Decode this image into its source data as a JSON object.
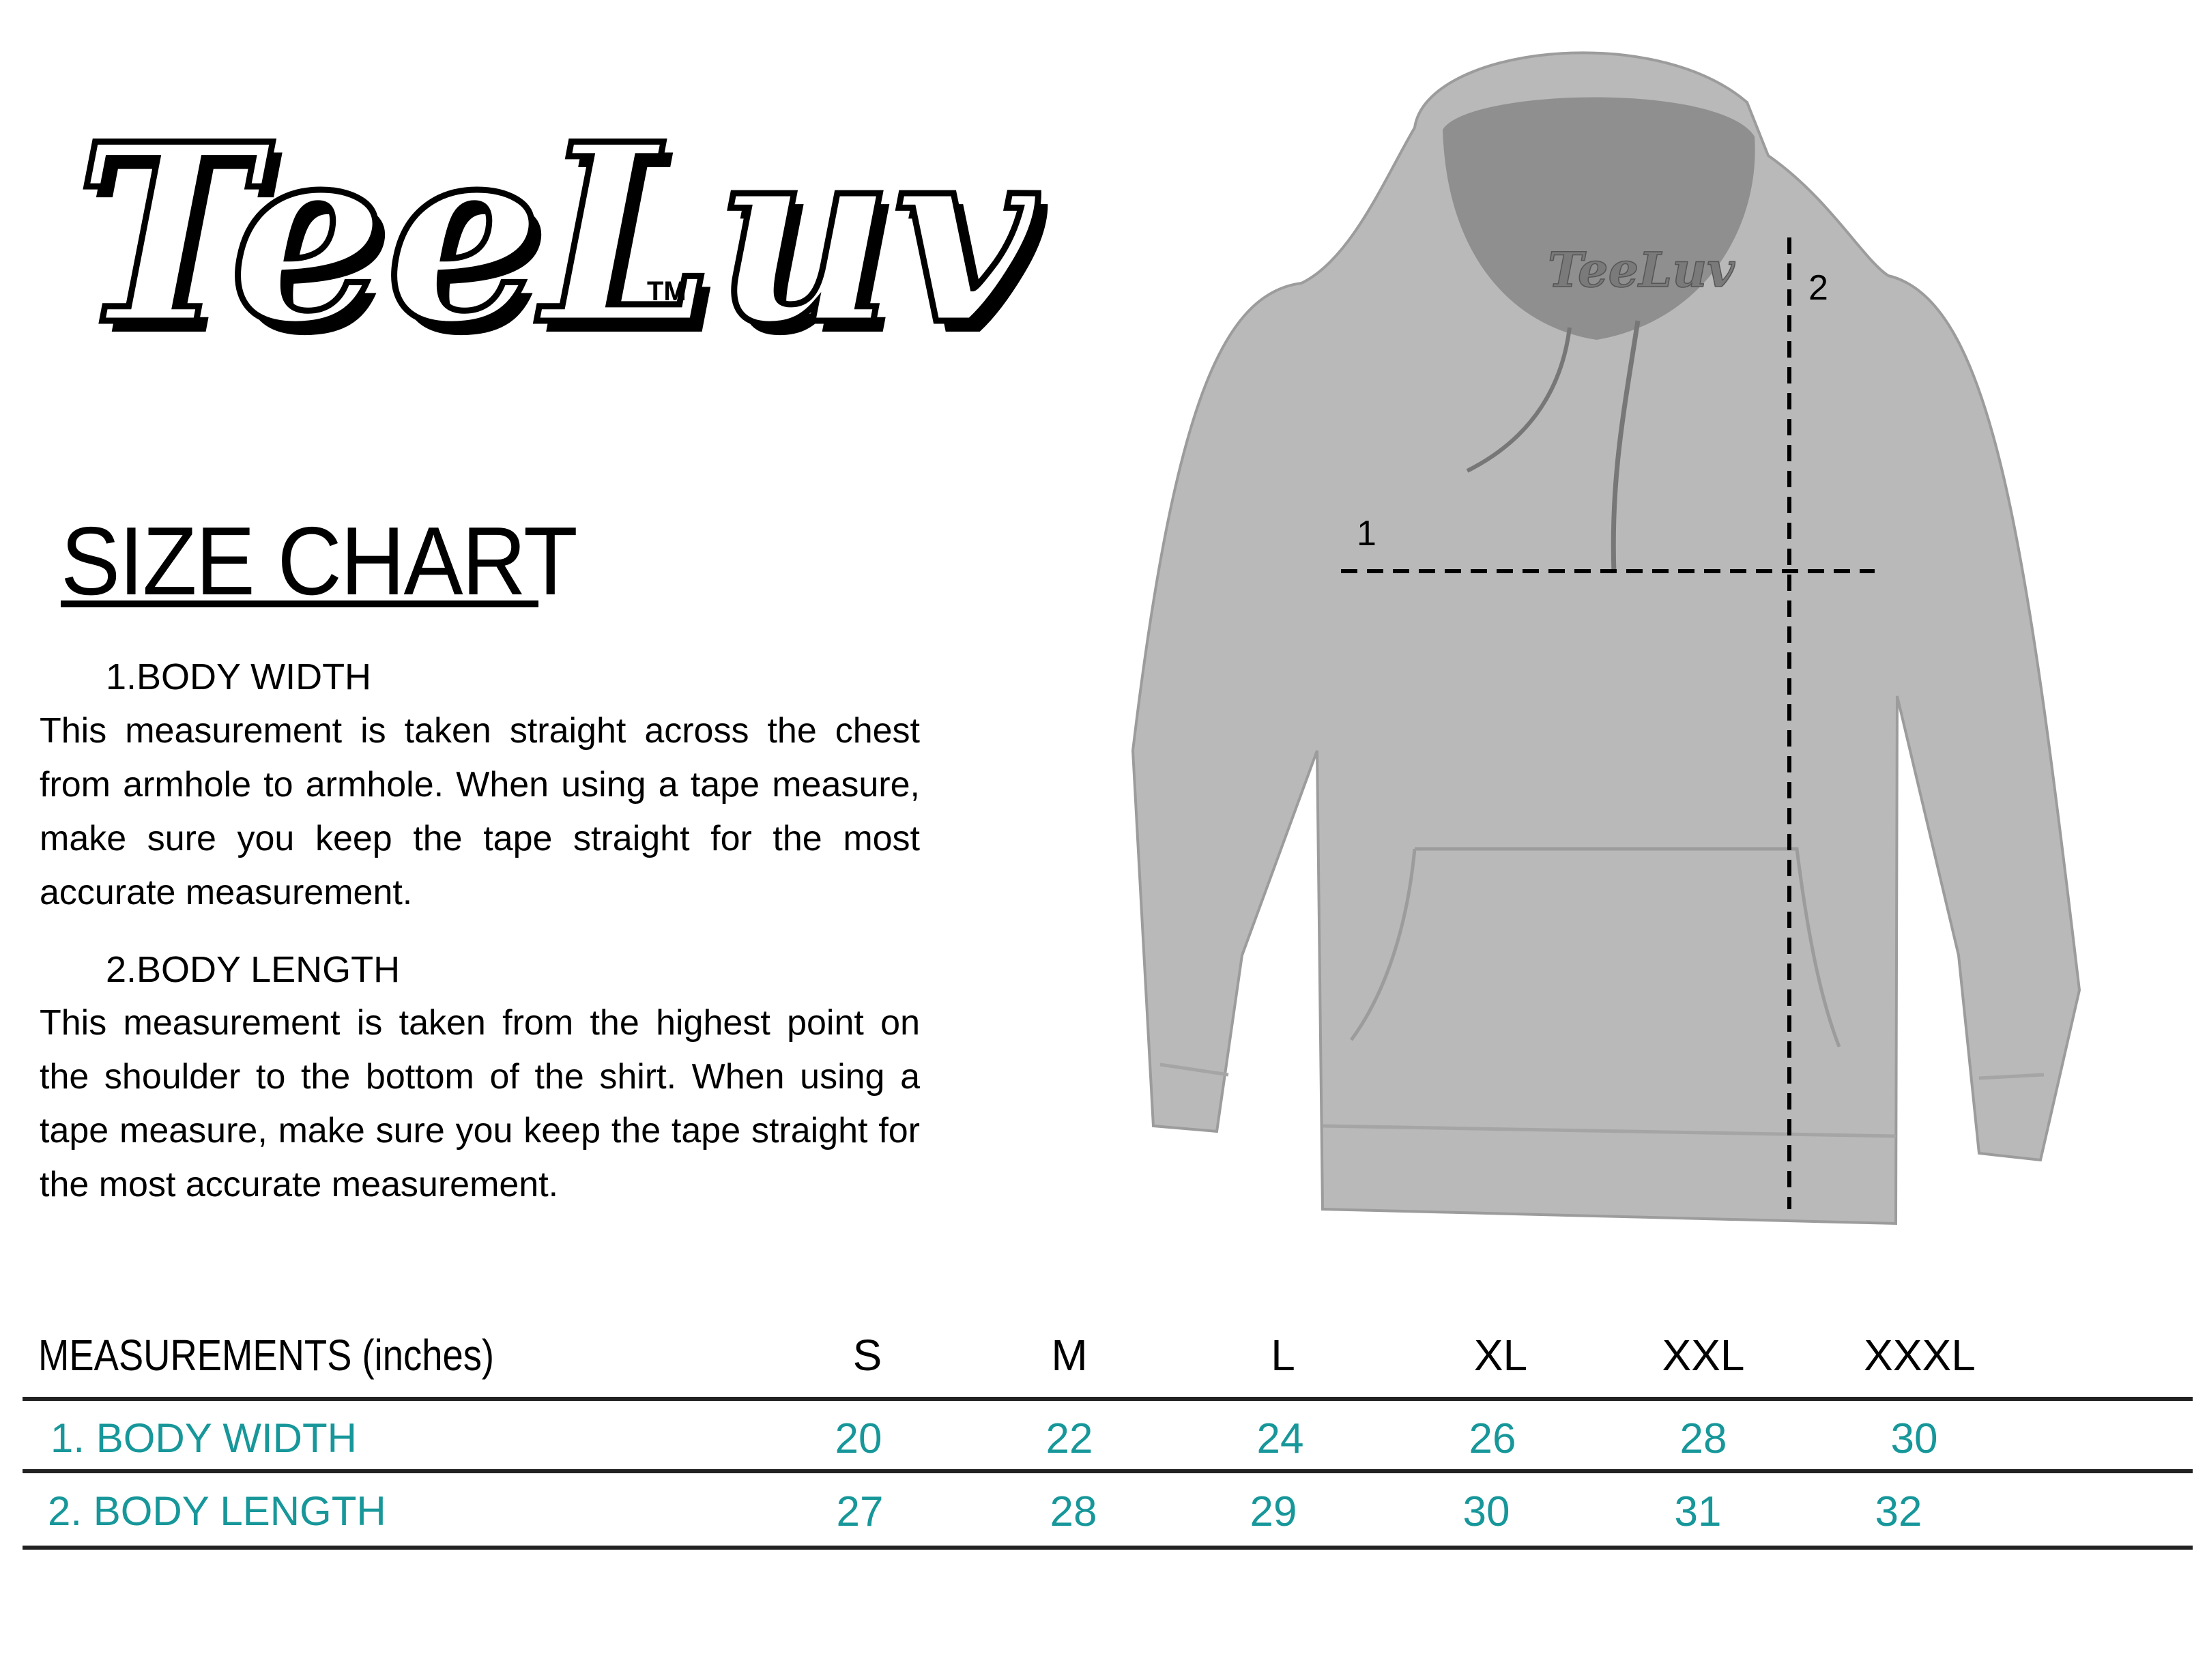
{
  "brand": {
    "logo_text": "TeeLuv",
    "trademark": "TM",
    "hood_label_text": "TeeLuv"
  },
  "title": "SIZE CHART",
  "sections": [
    {
      "heading": "1.BODY WIDTH",
      "text": "This measurement is taken straight across the chest from armhole to armhole. When using a tape measure, make sure you keep the tape straight for the most accurate measurement."
    },
    {
      "heading": "2.BODY LENGTH",
      "text": "This measurement is taken from the highest point on the shoulder to the bottom of the shirt. When using a tape measure, make sure you keep the tape straight for the most accurate measurement."
    }
  ],
  "diagram": {
    "width_marker": "1",
    "length_marker": "2",
    "garment_color": "#b9b9b9"
  },
  "table": {
    "header": "MEASUREMENTS (inches)",
    "sizes": [
      "S",
      "M",
      "L",
      "XL",
      "XXL",
      "XXXL"
    ],
    "rows": [
      {
        "label": "1. BODY WIDTH",
        "values": [
          "20",
          "22",
          "24",
          "26",
          "28",
          "30"
        ]
      },
      {
        "label": "2. BODY LENGTH",
        "values": [
          "27",
          "28",
          "29",
          "30",
          "31",
          "32"
        ]
      }
    ],
    "accent_color": "#17979a"
  }
}
